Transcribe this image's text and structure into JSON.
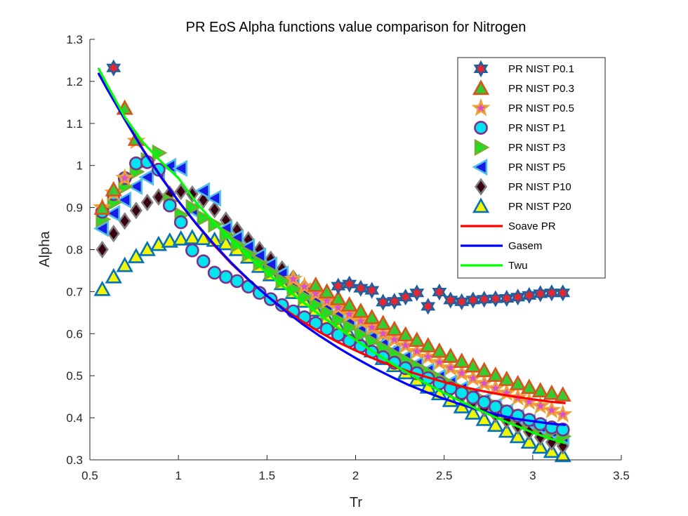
{
  "chart_data": {
    "type": "scatter",
    "title": "PR EoS Alpha functions value comparison for Nitrogen",
    "xlabel": "Tr",
    "ylabel": "Alpha",
    "xlim": [
      0.5,
      3.5
    ],
    "ylim": [
      0.3,
      1.3
    ],
    "xticks": [
      0.5,
      1,
      1.5,
      2,
      2.5,
      3,
      3.5
    ],
    "yticks": [
      0.3,
      0.4,
      0.5,
      0.6,
      0.7,
      0.8,
      0.9,
      1.0,
      1.1,
      1.2,
      1.3
    ],
    "xtick_labels": [
      "0.5",
      "1",
      "1.5",
      "2",
      "2.5",
      "3",
      "3.5"
    ],
    "ytick_labels": [
      "0.3",
      "0.4",
      "0.5",
      "0.6",
      "0.7",
      "0.8",
      "0.9",
      "1",
      "1.1",
      "1.2",
      "1.3"
    ],
    "grid": false,
    "legend_position": "top-right",
    "series": [
      {
        "name": "PR NIST P0.1",
        "marker": "hexagram",
        "edge": "#1f5fa0",
        "fill": "#e8262d",
        "x": [
          0.634,
          1.902,
          1.965,
          2.029,
          2.092,
          2.155,
          2.219,
          2.282,
          2.346,
          2.409,
          2.473,
          2.536,
          2.599,
          2.663,
          2.726,
          2.79,
          2.853,
          2.916,
          2.98,
          3.043,
          3.107,
          3.17
        ],
        "y": [
          1.232,
          0.713,
          0.718,
          0.708,
          0.703,
          0.675,
          0.677,
          0.687,
          0.697,
          0.665,
          0.699,
          0.68,
          0.676,
          0.68,
          0.682,
          0.683,
          0.684,
          0.687,
          0.691,
          0.695,
          0.697,
          0.697
        ]
      },
      {
        "name": "PR NIST P0.3",
        "marker": "triangle-up",
        "edge": "#d9541a",
        "fill": "#33cc33",
        "x": [
          0.57,
          0.634,
          0.697,
          0.761,
          1.775,
          1.838,
          1.902,
          1.965,
          2.029,
          2.092,
          2.155,
          2.219,
          2.282,
          2.346,
          2.409,
          2.473,
          2.536,
          2.599,
          2.663,
          2.726,
          2.79,
          2.853,
          2.916,
          2.98,
          3.043,
          3.107,
          3.17
        ],
        "y": [
          0.898,
          0.942,
          1.136,
          1.062,
          0.715,
          0.699,
          0.683,
          0.668,
          0.653,
          0.638,
          0.624,
          0.61,
          0.597,
          0.584,
          0.571,
          0.558,
          0.546,
          0.534,
          0.523,
          0.512,
          0.501,
          0.491,
          0.481,
          0.472,
          0.464,
          0.458,
          0.454
        ]
      },
      {
        "name": "PR NIST P0.5",
        "marker": "pentagram",
        "edge": "#f0a030",
        "fill": "#d64fd6",
        "x": [
          0.57,
          0.634,
          0.697,
          0.761,
          1.648,
          1.711,
          1.775,
          1.838,
          1.902,
          1.965,
          2.029,
          2.092,
          2.155,
          2.219,
          2.282,
          2.346,
          2.409,
          2.473,
          2.536,
          2.599,
          2.663,
          2.726,
          2.79,
          2.853,
          2.916,
          2.98,
          3.043,
          3.107,
          3.17
        ],
        "y": [
          0.9,
          0.935,
          0.97,
          1.058,
          0.73,
          0.712,
          0.695,
          0.678,
          0.662,
          0.646,
          0.63,
          0.615,
          0.6,
          0.586,
          0.572,
          0.558,
          0.545,
          0.532,
          0.519,
          0.506,
          0.494,
          0.482,
          0.47,
          0.459,
          0.448,
          0.438,
          0.428,
          0.418,
          0.408
        ]
      },
      {
        "name": "PR NIST P1",
        "marker": "circle",
        "edge": "#7e2f8e",
        "fill": "#00e5ee",
        "x": [
          0.57,
          0.634,
          0.697,
          0.761,
          0.824,
          0.888,
          0.951,
          1.014,
          1.078,
          1.141,
          1.204,
          1.268,
          1.331,
          1.395,
          1.458,
          1.521,
          1.585,
          1.648,
          1.711,
          1.775,
          1.838,
          1.902,
          1.965,
          2.029,
          2.092,
          2.155,
          2.219,
          2.282,
          2.346,
          2.409,
          2.473,
          2.536,
          2.599,
          2.663,
          2.726,
          2.79,
          2.853,
          2.916,
          2.98,
          3.043,
          3.107,
          3.17
        ],
        "y": [
          0.89,
          0.932,
          0.97,
          1.005,
          1.008,
          0.99,
          0.905,
          0.865,
          0.798,
          0.772,
          0.745,
          0.735,
          0.725,
          0.712,
          0.697,
          0.682,
          0.668,
          0.653,
          0.639,
          0.625,
          0.611,
          0.597,
          0.583,
          0.57,
          0.557,
          0.544,
          0.531,
          0.518,
          0.506,
          0.494,
          0.482,
          0.47,
          0.459,
          0.448,
          0.437,
          0.426,
          0.415,
          0.405,
          0.395,
          0.385,
          0.377,
          0.372
        ]
      },
      {
        "name": "PR NIST P3",
        "marker": "triangle-right",
        "edge": "#77ac30",
        "fill": "#22dd22",
        "x": [
          0.57,
          0.634,
          0.697,
          0.761,
          0.824,
          0.888,
          0.951,
          1.014,
          1.078,
          1.141,
          1.204,
          1.268,
          1.331,
          1.395,
          1.458,
          1.521,
          1.585,
          1.648,
          1.711,
          1.775,
          1.838,
          1.902,
          1.965,
          2.029,
          2.092,
          2.155,
          2.219,
          2.282,
          2.346,
          2.409,
          2.473,
          2.536,
          2.599,
          2.663,
          2.726,
          2.79,
          2.853,
          2.916,
          2.98,
          3.043,
          3.107,
          3.17
        ],
        "y": [
          0.872,
          0.912,
          0.95,
          0.985,
          1.012,
          1.03,
          0.915,
          0.882,
          0.9,
          0.875,
          0.86,
          0.835,
          0.812,
          0.79,
          0.768,
          0.747,
          0.726,
          0.706,
          0.687,
          0.668,
          0.65,
          0.632,
          0.615,
          0.598,
          0.582,
          0.566,
          0.551,
          0.536,
          0.521,
          0.507,
          0.493,
          0.479,
          0.466,
          0.453,
          0.44,
          0.428,
          0.416,
          0.404,
          0.392,
          0.38,
          0.368,
          0.356
        ]
      },
      {
        "name": "PR NIST P5",
        "marker": "triangle-left",
        "edge": "#4dbeee",
        "fill": "#1a1ae6",
        "x": [
          0.57,
          0.634,
          0.697,
          0.761,
          0.824,
          0.888,
          0.951,
          1.014,
          1.078,
          1.141,
          1.204,
          1.268,
          1.331,
          1.395,
          1.458,
          1.521,
          1.585,
          1.648,
          1.711,
          1.775,
          1.838,
          1.902,
          1.965,
          2.029,
          2.092,
          2.155,
          2.219,
          2.282,
          2.346,
          2.409,
          2.473,
          2.536,
          2.599,
          2.663,
          2.726,
          2.79,
          2.853,
          2.916,
          2.98,
          3.043,
          3.107,
          3.17
        ],
        "y": [
          0.85,
          0.886,
          0.918,
          0.95,
          0.972,
          0.985,
          0.998,
          0.993,
          0.895,
          0.94,
          0.922,
          0.85,
          0.828,
          0.806,
          0.785,
          0.764,
          0.742,
          0.722,
          0.702,
          0.682,
          0.663,
          0.645,
          0.627,
          0.609,
          0.592,
          0.575,
          0.559,
          0.543,
          0.527,
          0.512,
          0.497,
          0.483,
          0.469,
          0.455,
          0.441,
          0.428,
          0.415,
          0.402,
          0.39,
          0.378,
          0.366,
          0.355
        ]
      },
      {
        "name": "PR NIST P10",
        "marker": "diamond",
        "edge": "#7f7f7f",
        "fill": "#3a0011",
        "x": [
          0.57,
          0.634,
          0.697,
          0.761,
          0.824,
          0.888,
          0.951,
          1.014,
          1.078,
          1.141,
          1.204,
          1.268,
          1.331,
          1.395,
          1.458,
          1.521,
          1.585,
          1.648,
          1.711,
          1.775,
          1.838,
          1.902,
          1.965,
          2.029,
          2.092,
          2.155,
          2.219,
          2.282,
          2.346,
          2.409,
          2.473,
          2.536,
          2.599,
          2.663,
          2.726,
          2.79,
          2.853,
          2.916,
          2.98,
          3.043,
          3.107,
          3.17
        ],
        "y": [
          0.8,
          0.838,
          0.868,
          0.893,
          0.912,
          0.925,
          0.932,
          0.938,
          0.932,
          0.918,
          0.895,
          0.87,
          0.847,
          0.823,
          0.8,
          0.777,
          0.754,
          0.732,
          0.71,
          0.689,
          0.668,
          0.648,
          0.628,
          0.608,
          0.589,
          0.57,
          0.552,
          0.534,
          0.517,
          0.5,
          0.484,
          0.468,
          0.452,
          0.437,
          0.422,
          0.408,
          0.394,
          0.38,
          0.367,
          0.354,
          0.342,
          0.333
        ]
      },
      {
        "name": "PR NIST P20",
        "marker": "triangle-up",
        "edge": "#0072bd",
        "fill": "#f5f500",
        "x": [
          0.57,
          0.634,
          0.697,
          0.761,
          0.824,
          0.888,
          0.951,
          1.014,
          1.078,
          1.141,
          1.204,
          1.268,
          1.331,
          1.395,
          1.458,
          1.521,
          1.585,
          1.648,
          1.711,
          1.775,
          1.838,
          1.902,
          1.965,
          2.029,
          2.092,
          2.155,
          2.219,
          2.282,
          2.346,
          2.409,
          2.473,
          2.536,
          2.599,
          2.663,
          2.726,
          2.79,
          2.853,
          2.916,
          2.98,
          3.043,
          3.107,
          3.17
        ],
        "y": [
          0.705,
          0.735,
          0.762,
          0.783,
          0.8,
          0.812,
          0.82,
          0.825,
          0.828,
          0.826,
          0.822,
          0.814,
          0.8,
          0.782,
          0.76,
          0.74,
          0.719,
          0.698,
          0.677,
          0.656,
          0.636,
          0.616,
          0.597,
          0.578,
          0.559,
          0.541,
          0.524,
          0.507,
          0.49,
          0.473,
          0.457,
          0.441,
          0.426,
          0.411,
          0.396,
          0.382,
          0.368,
          0.355,
          0.342,
          0.33,
          0.32,
          0.31
        ]
      },
      {
        "name": "Soave PR",
        "type": "line",
        "color": "#ff0000",
        "x": [
          0.55,
          0.6,
          0.7,
          0.8,
          0.9,
          1.0,
          1.1,
          1.2,
          1.3,
          1.4,
          1.5,
          1.6,
          1.7,
          1.8,
          1.9,
          2.0,
          2.1,
          2.2,
          2.3,
          2.4,
          2.5,
          2.6,
          2.7,
          2.8,
          2.9,
          3.0,
          3.1,
          3.18
        ],
        "y": [
          1.218,
          1.181,
          1.109,
          1.038,
          0.975,
          0.915,
          0.861,
          0.811,
          0.766,
          0.726,
          0.69,
          0.658,
          0.629,
          0.603,
          0.58,
          0.56,
          0.541,
          0.525,
          0.51,
          0.497,
          0.485,
          0.474,
          0.465,
          0.457,
          0.45,
          0.444,
          0.438,
          0.435
        ]
      },
      {
        "name": "Gasem",
        "type": "line",
        "color": "#0000ff",
        "x": [
          0.55,
          0.6,
          0.7,
          0.8,
          0.9,
          1.0,
          1.1,
          1.2,
          1.3,
          1.4,
          1.5,
          1.6,
          1.7,
          1.8,
          1.9,
          2.0,
          2.1,
          2.2,
          2.3,
          2.4,
          2.5,
          2.6,
          2.7,
          2.8,
          2.9,
          3.0,
          3.1,
          3.18
        ],
        "y": [
          1.218,
          1.18,
          1.107,
          1.037,
          0.973,
          0.915,
          0.862,
          0.813,
          0.768,
          0.727,
          0.69,
          0.655,
          0.623,
          0.594,
          0.567,
          0.542,
          0.519,
          0.498,
          0.478,
          0.461,
          0.445,
          0.431,
          0.418,
          0.407,
          0.398,
          0.392,
          0.386,
          0.383
        ]
      },
      {
        "name": "Twu",
        "type": "line",
        "color": "#00ff00",
        "x": [
          0.55,
          0.6,
          0.7,
          0.8,
          0.9,
          1.0,
          1.1,
          1.2,
          1.3,
          1.4,
          1.5,
          1.6,
          1.7,
          1.8,
          1.9,
          2.0,
          2.1,
          2.2,
          2.3,
          2.4,
          2.5,
          2.6,
          2.7,
          2.8,
          2.9,
          3.0,
          3.1,
          3.18
        ],
        "y": [
          1.23,
          1.19,
          1.113,
          1.055,
          1.01,
          0.97,
          0.912,
          0.865,
          0.822,
          0.782,
          0.745,
          0.709,
          0.676,
          0.644,
          0.614,
          0.585,
          0.557,
          0.53,
          0.505,
          0.481,
          0.459,
          0.438,
          0.418,
          0.399,
          0.382,
          0.365,
          0.35,
          0.34
        ]
      }
    ]
  }
}
